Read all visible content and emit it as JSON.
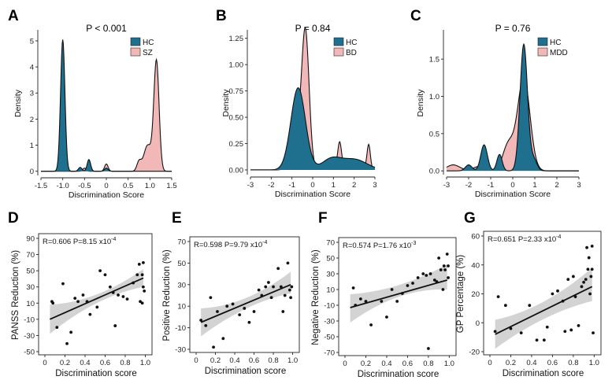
{
  "colors": {
    "hc": "#1f6f8f",
    "case": "#f2b8b8",
    "ci": "#d3d3d3",
    "line": "#111111",
    "point": "#111111"
  },
  "chart_data": [
    {
      "panel": "A",
      "type": "area",
      "title": "P < 0.001",
      "xlabel": "Discrimination Score",
      "ylabel": "Density",
      "xlim": [
        -1.5,
        1.5
      ],
      "ylim": [
        -0.1,
        5.3
      ],
      "xticks": [
        "-1.5",
        "-1.0",
        "-0.5",
        "0",
        "0.5",
        "1.0",
        "1.5"
      ],
      "yticks": [
        "0",
        "1",
        "2",
        "3",
        "4",
        "5"
      ],
      "legend": [
        "HC",
        "SZ"
      ],
      "series": [
        {
          "name": "HC",
          "peaks": [
            [
              -1.0,
              5.05,
              0.05
            ],
            [
              -0.4,
              0.45,
              0.04
            ],
            [
              -0.6,
              0.15,
              0.04
            ],
            [
              0.0,
              0.12,
              0.04
            ]
          ]
        },
        {
          "name": "SZ",
          "peaks": [
            [
              1.15,
              4.2,
              0.06
            ],
            [
              0.95,
              1.0,
              0.09
            ],
            [
              0.75,
              0.35,
              0.05
            ],
            [
              0.0,
              0.28,
              0.04
            ],
            [
              -0.5,
              0.12,
              0.04
            ]
          ]
        }
      ]
    },
    {
      "panel": "B",
      "type": "area",
      "title": "P = 0.84",
      "xlabel": "Discrimination Score",
      "ylabel": "Density",
      "xlim": [
        -3,
        3
      ],
      "ylim": [
        -0.03,
        1.3
      ],
      "xticks": [
        "-3",
        "-2",
        "-1",
        "0",
        "1",
        "2",
        "3"
      ],
      "yticks": [
        "0.00",
        "0.25",
        "0.50",
        "0.75",
        "1.00",
        "1.25"
      ],
      "legend": [
        "HC",
        "BD"
      ],
      "series": [
        {
          "name": "HC",
          "peaks": [
            [
              -0.7,
              0.78,
              0.35
            ],
            [
              0.9,
              0.1,
              0.45
            ],
            [
              2.0,
              0.1,
              0.6
            ]
          ]
        },
        {
          "name": "BD",
          "peaks": [
            [
              -0.35,
              1.28,
              0.18
            ],
            [
              -0.8,
              0.35,
              0.25
            ],
            [
              1.3,
              0.24,
              0.09
            ],
            [
              2.7,
              0.23,
              0.08
            ],
            [
              0.8,
              0.06,
              0.3
            ],
            [
              2.0,
              0.06,
              0.4
            ]
          ]
        }
      ]
    },
    {
      "panel": "C",
      "type": "area",
      "title": "P = 0.76",
      "xlabel": "Discrimination Score",
      "ylabel": "Density",
      "xlim": [
        -3,
        3
      ],
      "ylim": [
        -0.03,
        1.85
      ],
      "xticks": [
        "-3",
        "-2",
        "-1",
        "0",
        "1",
        "2",
        "3"
      ],
      "yticks": [
        "0.0",
        "0.5",
        "1.0",
        "1.5"
      ],
      "legend": [
        "HC",
        "MDD"
      ],
      "series": [
        {
          "name": "HC",
          "peaks": [
            [
              0.5,
              1.7,
              0.17
            ],
            [
              -1.3,
              0.35,
              0.15
            ],
            [
              -0.6,
              0.22,
              0.12
            ],
            [
              -2.0,
              0.08,
              0.15
            ],
            [
              0.95,
              0.15,
              0.15
            ]
          ]
        },
        {
          "name": "MDD",
          "peaks": [
            [
              0.5,
              1.25,
              0.28
            ],
            [
              -0.2,
              0.35,
              0.25
            ],
            [
              -2.7,
              0.08,
              0.3
            ],
            [
              -1.5,
              0.06,
              0.3
            ]
          ]
        }
      ]
    },
    {
      "panel": "D",
      "type": "scatter",
      "stat_label": "R=0.606 P=8.15 x10",
      "stat_exp": "-4",
      "xlabel": "Discrimination score",
      "ylabel": "PANSS Reduction (%)",
      "xlim": [
        0,
        1.02
      ],
      "ylim": [
        -50,
        90
      ],
      "xticks": [
        "0",
        "0.2",
        "0.4",
        "0.6",
        "0.8",
        "1.0"
      ],
      "yticks": [
        "-50",
        "-30",
        "-10",
        "10",
        "30",
        "50",
        "70",
        "90"
      ],
      "fit": [
        [
          0.05,
          -10
        ],
        [
          0.98,
          41
        ]
      ],
      "ci": [
        [
          0.05,
          -28,
          8
        ],
        [
          0.5,
          9,
          20
        ],
        [
          0.98,
          30,
          52
        ]
      ],
      "points": [
        [
          0.07,
          12
        ],
        [
          0.08,
          10
        ],
        [
          0.12,
          -20
        ],
        [
          0.18,
          34
        ],
        [
          0.22,
          -40
        ],
        [
          0.26,
          -26
        ],
        [
          0.3,
          16
        ],
        [
          0.33,
          12
        ],
        [
          0.38,
          20
        ],
        [
          0.42,
          12
        ],
        [
          0.45,
          -4
        ],
        [
          0.52,
          5
        ],
        [
          0.55,
          50
        ],
        [
          0.6,
          45
        ],
        [
          0.65,
          30
        ],
        [
          0.68,
          23
        ],
        [
          0.7,
          -18
        ],
        [
          0.73,
          20
        ],
        [
          0.78,
          18
        ],
        [
          0.82,
          15
        ],
        [
          0.88,
          35
        ],
        [
          0.92,
          45
        ],
        [
          0.94,
          58
        ],
        [
          0.95,
          12
        ],
        [
          0.97,
          45
        ],
        [
          0.97,
          10
        ],
        [
          0.98,
          60
        ],
        [
          0.98,
          30
        ],
        [
          0.99,
          25
        ]
      ]
    },
    {
      "panel": "E",
      "type": "scatter",
      "stat_label": "R=0.598 P=9.79 x10",
      "stat_exp": "-4",
      "xlabel": "Discrimination score",
      "ylabel": "Positive Reduction (%)",
      "xlim": [
        0,
        1.02
      ],
      "ylim": [
        -30,
        70
      ],
      "xticks": [
        "0",
        "0.2",
        "0.4",
        "0.6",
        "0.8",
        "1.0"
      ],
      "yticks": [
        "-30",
        "-10",
        "10",
        "30",
        "50",
        "70"
      ],
      "fit": [
        [
          0.05,
          -5
        ],
        [
          0.98,
          30
        ]
      ],
      "ci": [
        [
          0.05,
          -18,
          8
        ],
        [
          0.5,
          7,
          17
        ],
        [
          0.98,
          22,
          42
        ]
      ],
      "points": [
        [
          0.05,
          -3
        ],
        [
          0.1,
          -8
        ],
        [
          0.15,
          18
        ],
        [
          0.18,
          -28
        ],
        [
          0.22,
          5
        ],
        [
          0.28,
          -20
        ],
        [
          0.32,
          10
        ],
        [
          0.38,
          12
        ],
        [
          0.45,
          2
        ],
        [
          0.5,
          8
        ],
        [
          0.55,
          -5
        ],
        [
          0.6,
          5
        ],
        [
          0.65,
          25
        ],
        [
          0.68,
          20
        ],
        [
          0.72,
          28
        ],
        [
          0.75,
          32
        ],
        [
          0.78,
          18
        ],
        [
          0.8,
          28
        ],
        [
          0.85,
          45
        ],
        [
          0.88,
          28
        ],
        [
          0.9,
          5
        ],
        [
          0.92,
          20
        ],
        [
          0.95,
          50
        ],
        [
          0.97,
          25
        ],
        [
          0.98,
          18
        ],
        [
          0.99,
          28
        ]
      ]
    },
    {
      "panel": "F",
      "type": "scatter",
      "stat_label": "R=0.574 P=1.76 x10",
      "stat_exp": "-3",
      "xlabel": "Discrimination score",
      "ylabel": "Negative Reduction (%)",
      "xlim": [
        0,
        1.02
      ],
      "ylim": [
        -70,
        70
      ],
      "xticks": [
        "0",
        "0.2",
        "0.4",
        "0.6",
        "0.8",
        "1.0"
      ],
      "yticks": [
        "-70",
        "-50",
        "-30",
        "-10",
        "10",
        "30",
        "50",
        "70"
      ],
      "fit": [
        [
          0.05,
          -13
        ],
        [
          0.98,
          22
        ]
      ],
      "ci": [
        [
          0.05,
          -32,
          4
        ],
        [
          0.5,
          0,
          15
        ],
        [
          0.98,
          10,
          42
        ]
      ],
      "points": [
        [
          0.08,
          12
        ],
        [
          0.1,
          -10
        ],
        [
          0.15,
          -2
        ],
        [
          0.2,
          -5
        ],
        [
          0.25,
          -35
        ],
        [
          0.35,
          -5
        ],
        [
          0.4,
          -25
        ],
        [
          0.45,
          10
        ],
        [
          0.5,
          -5
        ],
        [
          0.55,
          5
        ],
        [
          0.6,
          15
        ],
        [
          0.65,
          18
        ],
        [
          0.7,
          25
        ],
        [
          0.75,
          30
        ],
        [
          0.78,
          28
        ],
        [
          0.8,
          -65
        ],
        [
          0.82,
          30
        ],
        [
          0.86,
          22
        ],
        [
          0.88,
          20
        ],
        [
          0.9,
          50
        ],
        [
          0.92,
          35
        ],
        [
          0.94,
          10
        ],
        [
          0.95,
          40
        ],
        [
          0.96,
          35
        ],
        [
          0.98,
          55
        ],
        [
          0.99,
          40
        ],
        [
          0.99,
          25
        ]
      ]
    },
    {
      "panel": "G",
      "type": "scatter",
      "stat_label": "R=0.651 P=2.33 x10",
      "stat_exp": "-4",
      "xlabel": "Discrimination score",
      "ylabel": "GP Percentage (%)",
      "xlim": [
        0,
        1.02
      ],
      "ylim": [
        -20,
        60
      ],
      "xticks": [
        "0",
        "0.2",
        "0.4",
        "0.6",
        "0.8",
        "1.0"
      ],
      "yticks": [
        "-20",
        "0",
        "20",
        "40",
        "60"
      ],
      "fit": [
        [
          0.05,
          -8
        ],
        [
          0.98,
          25
        ]
      ],
      "ci": [
        [
          0.05,
          -18,
          2
        ],
        [
          0.5,
          2,
          14
        ],
        [
          0.98,
          15,
          38
        ]
      ],
      "points": [
        [
          0.05,
          -6
        ],
        [
          0.08,
          18
        ],
        [
          0.15,
          12
        ],
        [
          0.2,
          -4
        ],
        [
          0.3,
          -7
        ],
        [
          0.38,
          12
        ],
        [
          0.45,
          -12
        ],
        [
          0.52,
          -12
        ],
        [
          0.55,
          -3
        ],
        [
          0.6,
          20
        ],
        [
          0.65,
          22
        ],
        [
          0.7,
          15
        ],
        [
          0.72,
          -6
        ],
        [
          0.75,
          30
        ],
        [
          0.78,
          -5
        ],
        [
          0.8,
          32
        ],
        [
          0.82,
          18
        ],
        [
          0.85,
          -2
        ],
        [
          0.88,
          25
        ],
        [
          0.9,
          28
        ],
        [
          0.92,
          30
        ],
        [
          0.93,
          52
        ],
        [
          0.94,
          37
        ],
        [
          0.95,
          45
        ],
        [
          0.96,
          20
        ],
        [
          0.97,
          32
        ],
        [
          0.98,
          53
        ],
        [
          0.98,
          37
        ],
        [
          0.99,
          -7
        ]
      ]
    }
  ]
}
